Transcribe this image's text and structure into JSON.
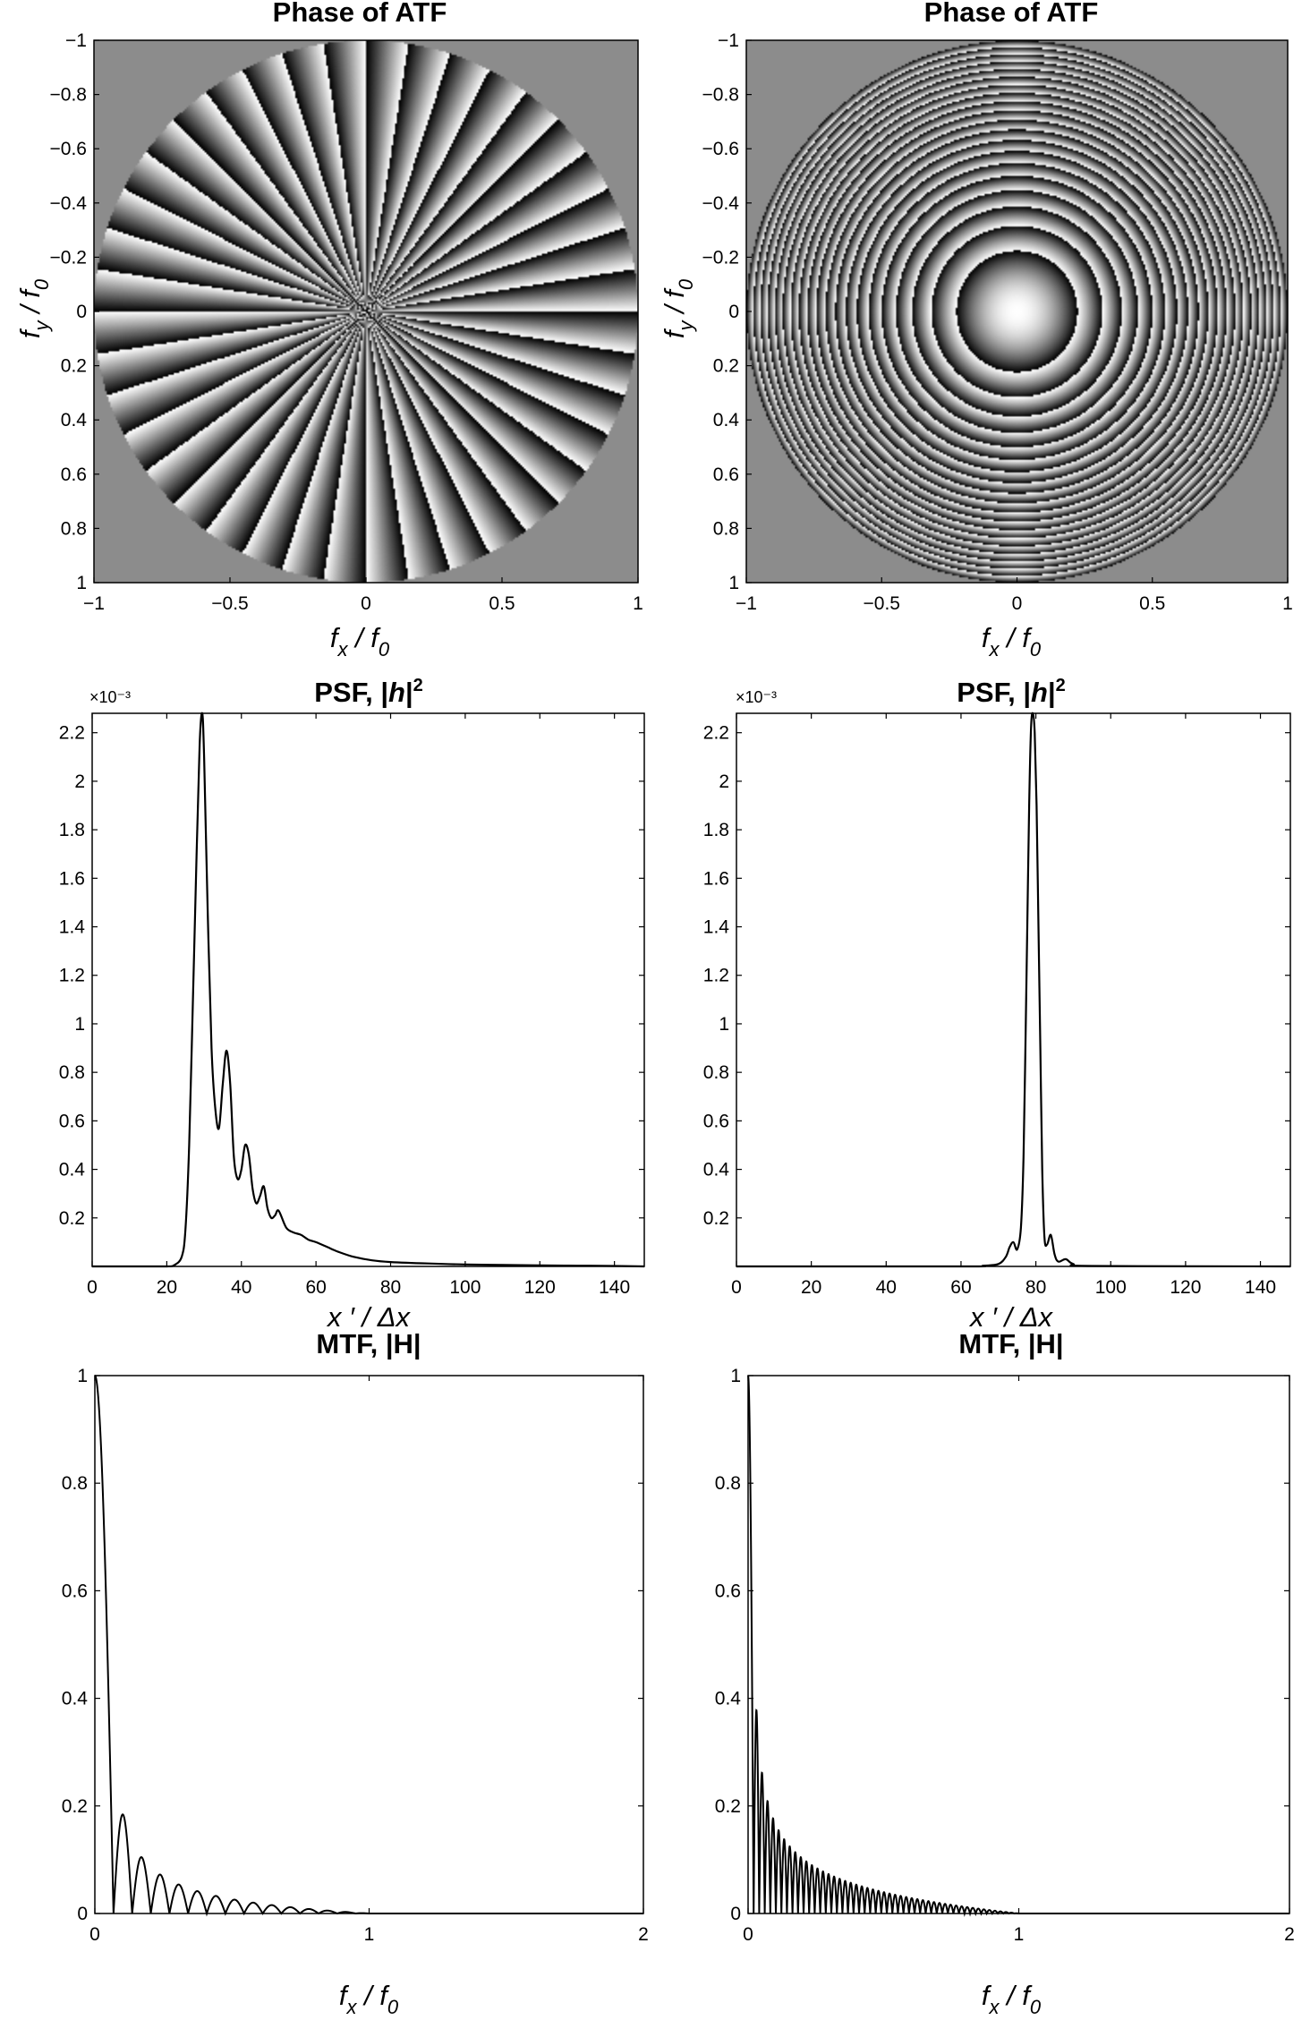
{
  "figure": {
    "colors": {
      "background": "#ffffff",
      "axes": "#000000",
      "pupil_outside": "#8c8c8c",
      "line": "#000000"
    },
    "charts": [
      {
        "id": "atf-left",
        "type": "heatmap",
        "title": "Phase of ATF",
        "pattern": "azimuthal-spokes",
        "spoke_count": 40,
        "xlabel": {
          "main": "f",
          "sub": "x",
          "rest": " / f",
          "sub2": "0"
        },
        "ylabel": {
          "main": "f",
          "sub": "y",
          "rest": " / f",
          "sub2": "0"
        },
        "xlim": [
          -1,
          1
        ],
        "ylim": [
          -1,
          1
        ],
        "xticks": [
          "−1",
          "−0.5",
          "0",
          "0.5",
          "1"
        ],
        "yticks": [
          "−1",
          "−0.8",
          "−0.6",
          "−0.4",
          "−0.2",
          "0",
          "0.2",
          "0.4",
          "0.6",
          "0.8",
          "1"
        ]
      },
      {
        "id": "atf-right",
        "type": "heatmap",
        "title": "Phase of ATF",
        "pattern": "concentric-rings",
        "ring_count": 20,
        "xlabel": {
          "main": "f",
          "sub": "x",
          "rest": " / f",
          "sub2": "0"
        },
        "ylabel": {
          "main": "f",
          "sub": "y",
          "rest": " / f",
          "sub2": "0"
        },
        "xlim": [
          -1,
          1
        ],
        "ylim": [
          -1,
          1
        ],
        "xticks": [
          "−1",
          "−0.5",
          "0",
          "0.5",
          "1"
        ],
        "yticks": [
          "−1",
          "−0.8",
          "−0.6",
          "−0.4",
          "−0.2",
          "0",
          "0.2",
          "0.4",
          "0.6",
          "0.8",
          "1"
        ]
      },
      {
        "id": "psf-left",
        "type": "line",
        "title": "PSF, |h|²",
        "title_parts": [
          "PSF, |",
          "h",
          "|",
          "2"
        ],
        "exponent_label": "×10⁻³",
        "xlabel_text": "x ′ / Δx",
        "xlim": [
          0,
          148
        ],
        "ylim": [
          0,
          0.00228
        ],
        "xticks": [
          0,
          20,
          40,
          60,
          80,
          100,
          120,
          140
        ],
        "yticks": [
          0.2,
          0.4,
          0.6,
          0.8,
          1,
          1.2,
          1.4,
          1.6,
          1.8,
          2,
          2.2
        ],
        "x": [
          0,
          10,
          20,
          22,
          24,
          25,
          26,
          27,
          28,
          28.8,
          29.5,
          30,
          31,
          32,
          33,
          34,
          35,
          36,
          37,
          38,
          39,
          40,
          41,
          42,
          43,
          44,
          45,
          46,
          47,
          48,
          49,
          50,
          52,
          54,
          56,
          58,
          60,
          63,
          66,
          70,
          75,
          80,
          90,
          100,
          110,
          120,
          130,
          140,
          148
        ],
        "y": [
          0,
          0,
          0,
          5e-06,
          4e-05,
          0.00015,
          0.0005,
          0.0011,
          0.0017,
          0.00215,
          0.00228,
          0.0021,
          0.00145,
          0.0009,
          0.00065,
          0.00057,
          0.00075,
          0.00089,
          0.00075,
          0.00045,
          0.00036,
          0.0004,
          0.0005,
          0.00046,
          0.00032,
          0.00026,
          0.00029,
          0.00033,
          0.00024,
          0.0002,
          0.00021,
          0.00023,
          0.00016,
          0.00014,
          0.00013,
          0.00011,
          0.0001,
          8e-05,
          6e-05,
          4e-05,
          2.5e-05,
          1.8e-05,
          1.2e-05,
          8e-06,
          6e-06,
          4e-06,
          3e-06,
          2e-06,
          0
        ]
      },
      {
        "id": "psf-right",
        "type": "line",
        "title": "PSF, |h|²",
        "title_parts": [
          "PSF, |",
          "h",
          "|",
          "2"
        ],
        "exponent_label": "×10⁻³",
        "xlabel_text": "x ′ / Δx",
        "xlim": [
          0,
          148
        ],
        "ylim": [
          0,
          0.00228
        ],
        "xticks": [
          0,
          20,
          40,
          60,
          80,
          100,
          120,
          140
        ],
        "yticks": [
          0.2,
          0.4,
          0.6,
          0.8,
          1,
          1.2,
          1.4,
          1.6,
          1.8,
          2,
          2.2
        ],
        "x": [
          0,
          60,
          66,
          70,
          72,
          73,
          74,
          75,
          76,
          76.7,
          77.2,
          77.7,
          78.2,
          78.7,
          79.2,
          79.7,
          80.2,
          80.7,
          81.2,
          81.7,
          82.3,
          83,
          84,
          85,
          86,
          88,
          90,
          95,
          148
        ],
        "y": [
          0,
          0,
          3e-06,
          1e-05,
          4e-05,
          8e-05,
          0.0001,
          7e-05,
          0.00016,
          0.00045,
          0.0009,
          0.0014,
          0.0019,
          0.00222,
          0.00228,
          0.0022,
          0.0019,
          0.0014,
          0.0009,
          0.0004,
          0.00012,
          9e-05,
          0.00013,
          5e-05,
          2e-05,
          3e-05,
          1e-05,
          2e-06,
          0
        ]
      },
      {
        "id": "mtf-left",
        "type": "line",
        "title": "MTF, |H|",
        "xlabel": {
          "main": "f",
          "sub": "x",
          "rest": " / f",
          "sub2": "0"
        },
        "xlim": [
          0,
          2
        ],
        "ylim": [
          0,
          1
        ],
        "xticks": [
          0,
          1,
          2
        ],
        "yticks": [
          0,
          0.2,
          0.4,
          0.6,
          0.8,
          1
        ],
        "lobe_period": 0.068,
        "lobe_peak_scale": 0.205,
        "lobe_decay_power": 0.7,
        "cutoff": 1.0
      },
      {
        "id": "mtf-right",
        "type": "line",
        "title": "MTF, |H|",
        "xlabel": {
          "main": "f",
          "sub": "x",
          "rest": " / f",
          "sub2": "0"
        },
        "xlim": [
          0,
          2
        ],
        "ylim": [
          0,
          1
        ],
        "xticks": [
          0,
          1,
          2
        ],
        "yticks": [
          0,
          0.2,
          0.4,
          0.6,
          0.8,
          1
        ],
        "lobe_period": 0.0205,
        "lobe_peak_scale": 0.39,
        "lobe_decay_power": 0.5,
        "cutoff": 1.0
      }
    ]
  }
}
